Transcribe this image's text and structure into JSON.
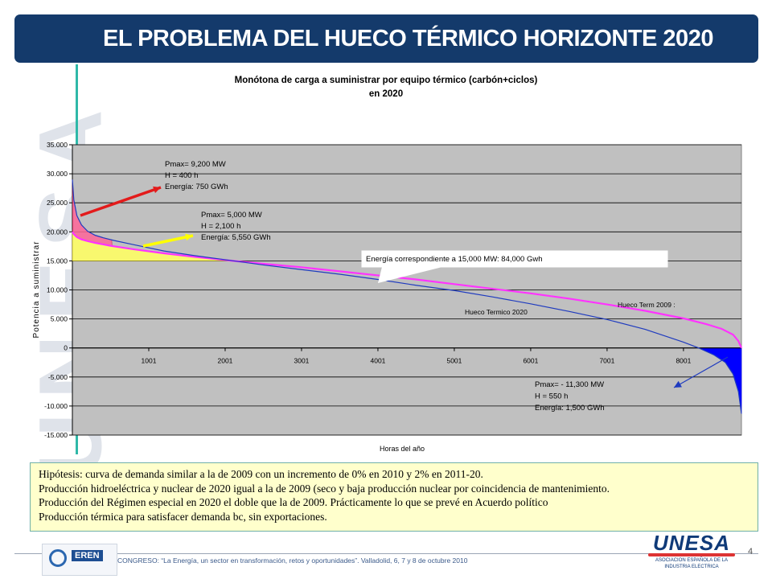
{
  "slide": {
    "title": "EL PROBLEMA DEL HUECO TÉRMICO HORIZONTE 2020",
    "page_number": "4",
    "footer": "CONGRESO: “La Energía, un sector en transformación, retos y oportunidades”. Valladolid, 6, 7 y 8 de octubre  2010",
    "watermark": "UNESA",
    "logo_left": "EREN",
    "logo_right": "UNESA",
    "logo_right_sub": "ASOCIACION ESPAÑOLA DE LA INDUSTRIA ELECTRICA"
  },
  "hypotheses": [
    "Hipótesis: curva de demanda similar a la de 2009 con un incremento  de 0% en 2010 y 2% en 2011-20.",
    "Producción hidroeléctrica y nuclear de 2020 igual a la de 2009 (seco y baja producción nuclear por coincidencia de mantenimiento.",
    "Producción del Régimen especial en 2020 el doble que la de 2009. Prácticamente lo que se prevé en Acuerdo político",
    "Producción térmica para satisfacer demanda bc, sin exportaciones."
  ],
  "colors": {
    "title_bar": "#143a6b",
    "plot_bg": "#c0c0c0",
    "series_2020": "#1f3bbf",
    "series_2009": "#ff33ff",
    "yellow_area": "#ffff66",
    "red_area": "#ff6699",
    "blue_area": "#0000ff",
    "arrow_red": "#e31b1b",
    "arrow_yellow": "#ffff00"
  },
  "chart_data": {
    "type": "line",
    "title": "Monótona de carga a suministrar por equipo térmico (carbón+ciclos)",
    "subtitle": "en 2020",
    "xlabel": "Horas del año",
    "ylabel": "Potencia a suministrar",
    "xlim": [
      1,
      8760
    ],
    "ylim": [
      -15000,
      35000
    ],
    "y_ticks": [
      35000,
      30000,
      25000,
      20000,
      15000,
      10000,
      5000,
      0,
      -5000,
      -10000,
      -15000
    ],
    "y_tick_labels": [
      "35.000",
      "30.000",
      "25.000",
      "20.000",
      "15.000",
      "10.000",
      "5.000",
      "0",
      "-5.000",
      "-10.000",
      "-15.000"
    ],
    "x_ticks": [
      1001,
      2001,
      3001,
      4001,
      5001,
      6001,
      7001,
      8001
    ],
    "x_tick_labels": [
      "1001",
      "2001",
      "3001",
      "4001",
      "5001",
      "6001",
      "7001",
      "8001"
    ],
    "grid": true,
    "series": [
      {
        "name": "Hueco Termico 2020",
        "x": [
          1,
          20,
          60,
          120,
          200,
          300,
          400,
          550,
          800,
          1200,
          1600,
          2000,
          2500,
          3000,
          3500,
          4000,
          4500,
          5000,
          5500,
          6000,
          6500,
          7000,
          7500,
          8000,
          8200,
          8400,
          8550,
          8650,
          8720,
          8760
        ],
        "y": [
          29000,
          25500,
          22800,
          21200,
          20100,
          19400,
          19000,
          18500,
          17800,
          16700,
          15900,
          15200,
          14300,
          13500,
          12700,
          11800,
          10800,
          9900,
          8800,
          7600,
          6300,
          4900,
          3200,
          1000,
          0,
          -1200,
          -2500,
          -4500,
          -7500,
          -11300
        ]
      },
      {
        "name": "Hueco Term 2009 :",
        "x": [
          1,
          20,
          60,
          120,
          200,
          300,
          500,
          800,
          1200,
          1600,
          2000,
          2100,
          2500,
          3000,
          3500,
          4000,
          4500,
          5000,
          5500,
          6000,
          6500,
          7000,
          7500,
          8000,
          8300,
          8500,
          8650,
          8720,
          8760
        ],
        "y": [
          20000,
          19600,
          19100,
          18700,
          18400,
          18100,
          17600,
          17000,
          16300,
          15700,
          15150,
          15000,
          14500,
          13900,
          13200,
          12500,
          11800,
          11000,
          10200,
          9400,
          8500,
          7500,
          6400,
          5100,
          4100,
          3300,
          2300,
          1200,
          0
        ]
      }
    ],
    "annotations": [
      {
        "lines": [
          "Pmax= 9,200 MW",
          "H =      400 h",
          "Energía: 750 GWh"
        ]
      },
      {
        "lines": [
          "Pmax= 5,000 MW",
          "H =       2,100 h",
          "Energía: 5,550 GWh"
        ]
      },
      {
        "lines": [
          "Energía correspondiente a 15,000 MW: 84,000 Gwh"
        ]
      },
      {
        "lines": [
          "Pmax= - 11,300 MW",
          "H =       550 h",
          "Energía: 1,500  GWh"
        ]
      }
    ]
  }
}
